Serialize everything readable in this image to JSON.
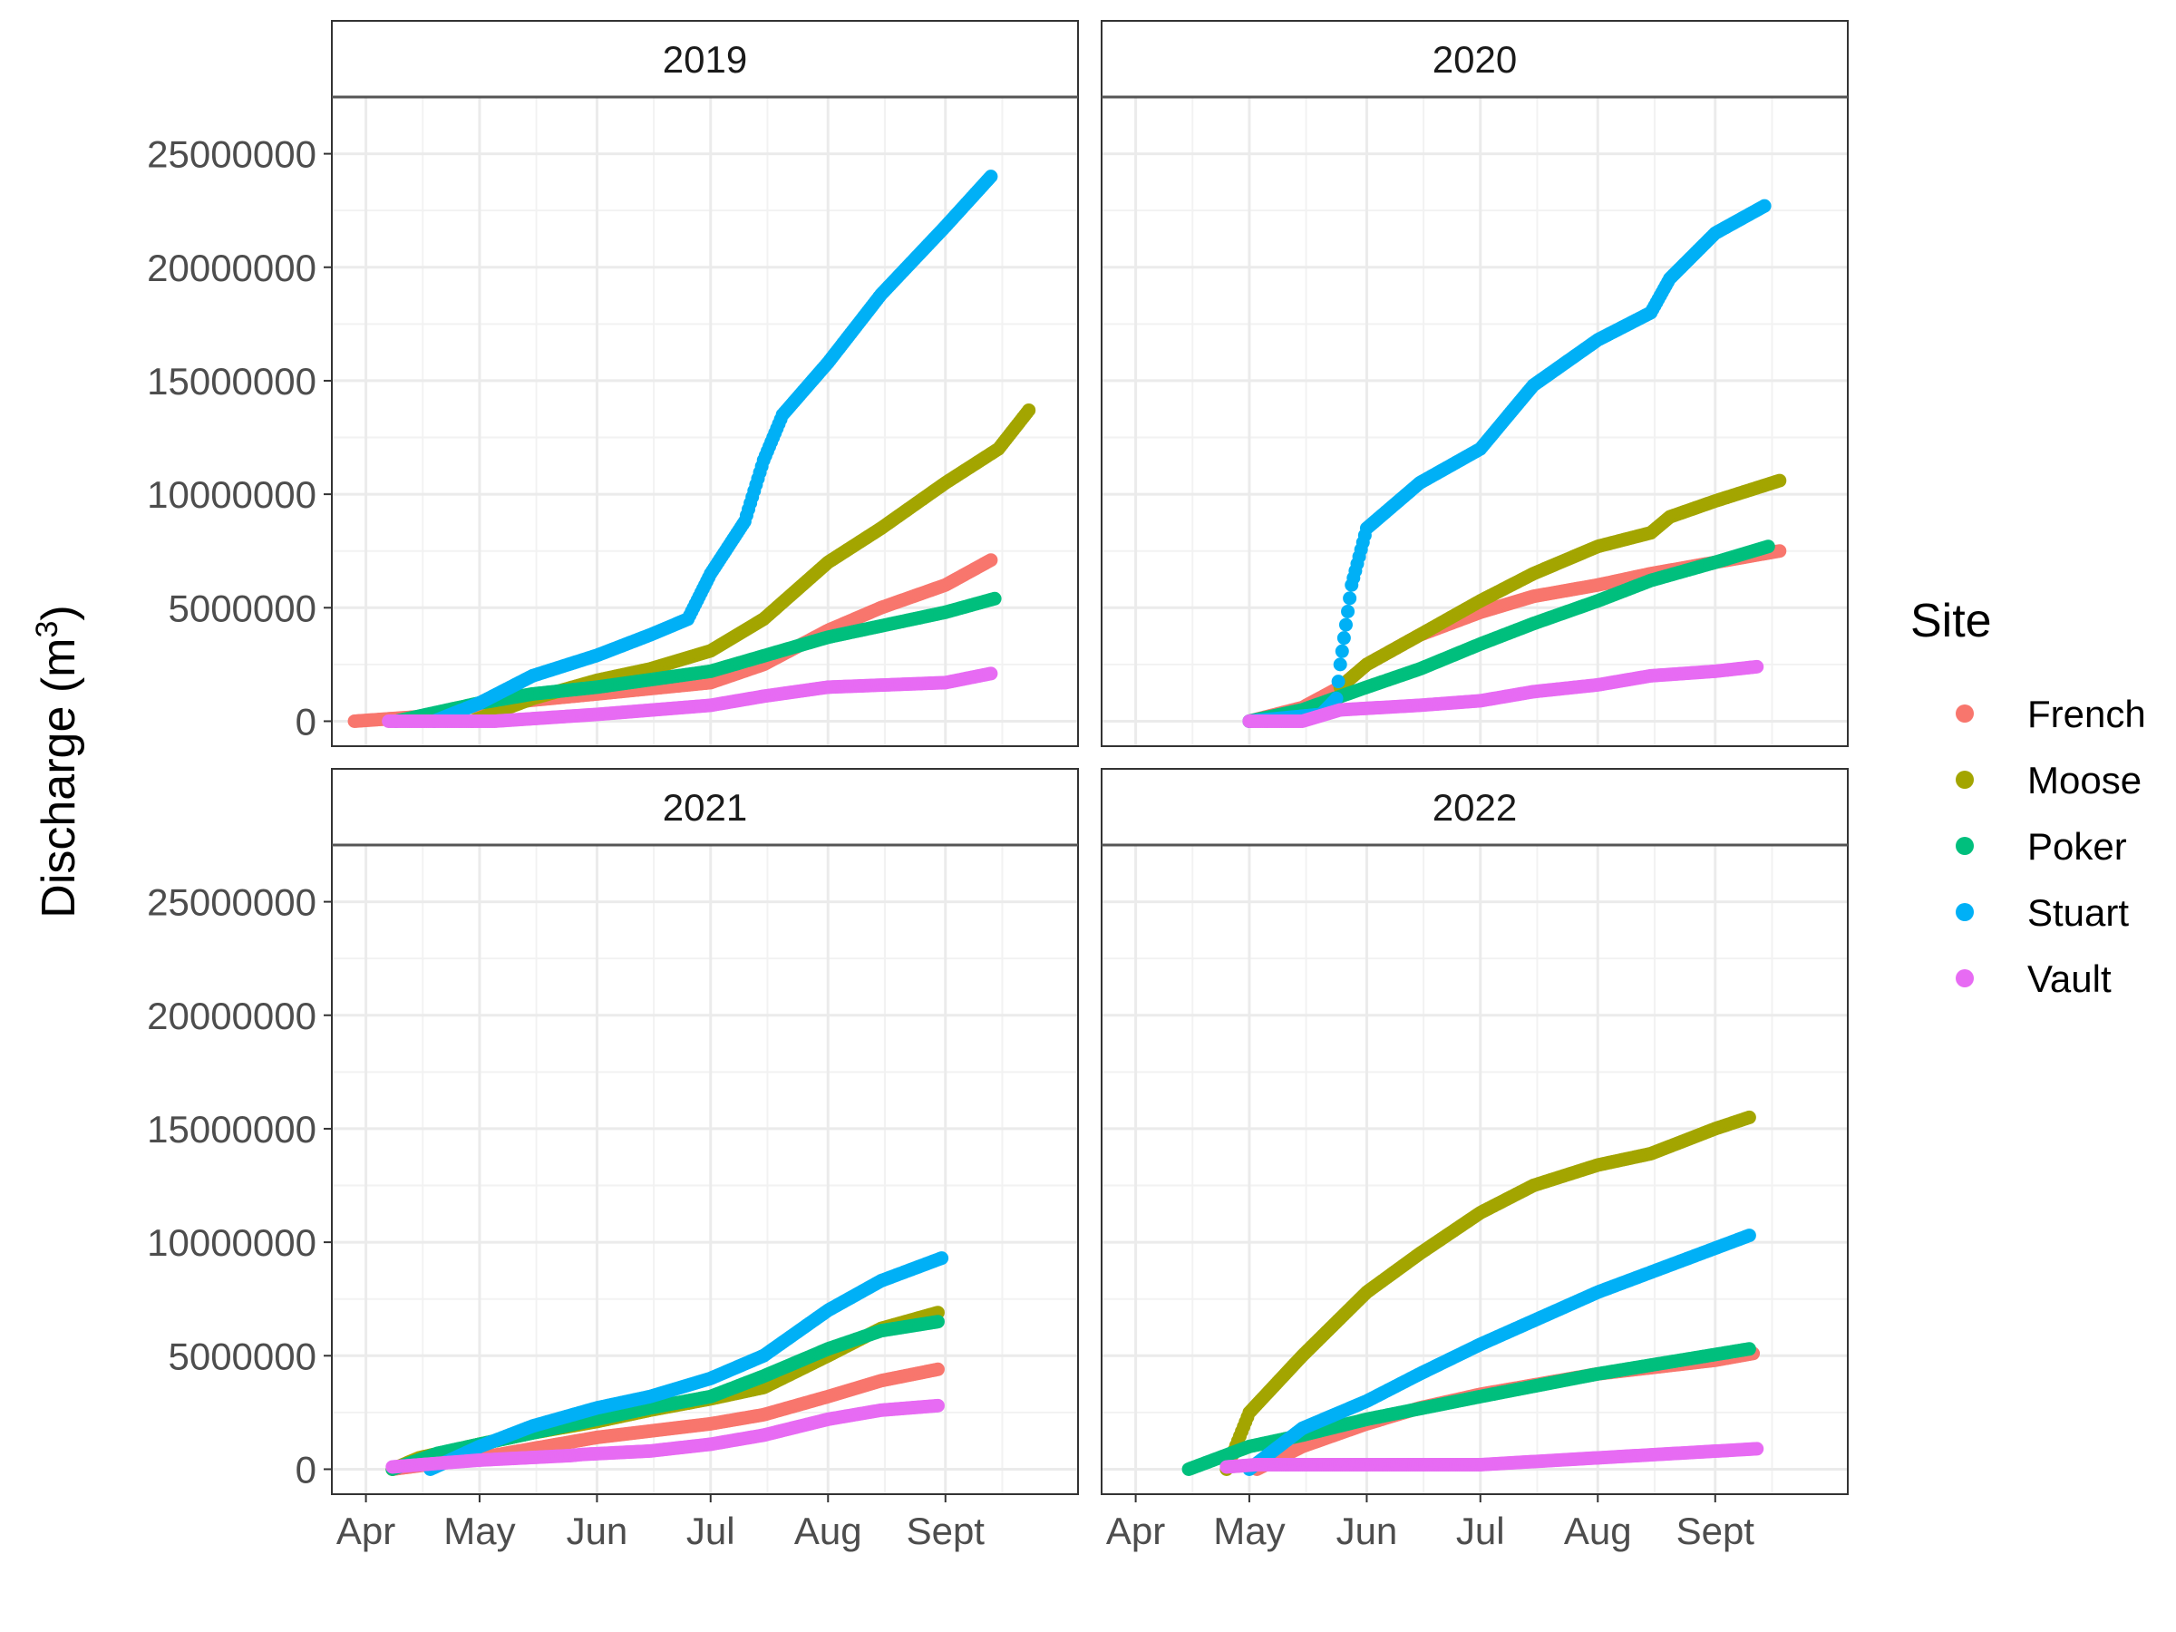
{
  "chart_data": {
    "type": "scatter",
    "ylabel": "Discharge (m",
    "ylabel_sup": "3",
    "ylabel_close": ")",
    "xlabel": "",
    "ylim": [
      -1100000,
      27500000
    ],
    "y_ticks": [
      0,
      5000000,
      10000000,
      15000000,
      20000000,
      25000000
    ],
    "y_tick_labels": [
      "0",
      "5000000",
      "10000000",
      "15000000",
      "20000000",
      "25000000"
    ],
    "x_ticks": [
      "04-01",
      "05-01",
      "06-01",
      "07-01",
      "08-01",
      "09-01"
    ],
    "x_tick_labels": [
      "Apr",
      "May",
      "Jun",
      "Jul",
      "Aug",
      "Sept"
    ],
    "x_minor": [
      "04-16",
      "05-16",
      "06-16",
      "07-16",
      "08-16",
      "09-16"
    ],
    "xlim": [
      "03-23",
      "10-06"
    ],
    "grid": true,
    "legend": {
      "title": "Site",
      "placement": "right"
    },
    "series_colors": {
      "French": "#F8766D",
      "Moose": "#A3A500",
      "Poker": "#00BF7D",
      "Stuart": "#00B0F6",
      "Vault": "#E76BF3"
    },
    "series_order": [
      "French",
      "Moose",
      "Poker",
      "Stuart",
      "Vault"
    ],
    "facets": [
      {
        "label": "2019",
        "series": [
          {
            "name": "French",
            "points": [
              [
                "03-29",
                0
              ],
              [
                "04-15",
                200000
              ],
              [
                "05-01",
                700000
              ],
              [
                "06-01",
                1200000
              ],
              [
                "07-01",
                1700000
              ],
              [
                "07-15",
                2500000
              ],
              [
                "08-01",
                4000000
              ],
              [
                "08-15",
                5000000
              ],
              [
                "09-01",
                6000000
              ],
              [
                "09-13",
                7100000
              ]
            ]
          },
          {
            "name": "Moose",
            "points": [
              [
                "04-29",
                0
              ],
              [
                "05-15",
                1000000
              ],
              [
                "06-01",
                1800000
              ],
              [
                "06-15",
                2300000
              ],
              [
                "07-01",
                3100000
              ],
              [
                "07-15",
                4500000
              ],
              [
                "08-01",
                7000000
              ],
              [
                "08-15",
                8500000
              ],
              [
                "09-01",
                10500000
              ],
              [
                "09-15",
                12000000
              ],
              [
                "09-23",
                13700000
              ]
            ]
          },
          {
            "name": "Poker",
            "points": [
              [
                "04-09",
                0
              ],
              [
                "05-01",
                800000
              ],
              [
                "05-15",
                1200000
              ],
              [
                "06-01",
                1500000
              ],
              [
                "07-01",
                2200000
              ],
              [
                "08-01",
                3700000
              ],
              [
                "09-01",
                4800000
              ],
              [
                "09-14",
                5400000
              ]
            ]
          },
          {
            "name": "Stuart",
            "points": [
              [
                "04-19",
                0
              ],
              [
                "05-01",
                800000
              ],
              [
                "05-15",
                2000000
              ],
              [
                "06-01",
                2900000
              ],
              [
                "06-15",
                3800000
              ],
              [
                "06-25",
                4500000
              ],
              [
                "07-01",
                6500000
              ],
              [
                "07-10",
                8800000
              ],
              [
                "07-15",
                11500000
              ],
              [
                "07-20",
                13500000
              ],
              [
                "08-01",
                15800000
              ],
              [
                "08-15",
                18800000
              ],
              [
                "09-01",
                21800000
              ],
              [
                "09-13",
                24000000
              ]
            ]
          },
          {
            "name": "Vault",
            "points": [
              [
                "04-07",
                0
              ],
              [
                "04-19",
                0
              ],
              [
                "05-05",
                0
              ],
              [
                "06-01",
                300000
              ],
              [
                "07-01",
                700000
              ],
              [
                "07-15",
                1100000
              ],
              [
                "08-01",
                1500000
              ],
              [
                "09-01",
                1700000
              ],
              [
                "09-13",
                2100000
              ]
            ]
          }
        ]
      },
      {
        "label": "2020",
        "series": [
          {
            "name": "French",
            "points": [
              [
                "05-01",
                0
              ],
              [
                "05-15",
                600000
              ],
              [
                "05-25",
                1500000
              ],
              [
                "06-01",
                2500000
              ],
              [
                "06-15",
                3800000
              ],
              [
                "07-01",
                4800000
              ],
              [
                "07-15",
                5500000
              ],
              [
                "08-01",
                6000000
              ],
              [
                "08-15",
                6500000
              ],
              [
                "09-01",
                7000000
              ],
              [
                "09-18",
                7500000
              ]
            ]
          },
          {
            "name": "Moose",
            "points": [
              [
                "05-25",
                1500000
              ],
              [
                "06-01",
                2500000
              ],
              [
                "06-15",
                3800000
              ],
              [
                "07-01",
                5300000
              ],
              [
                "07-15",
                6500000
              ],
              [
                "08-01",
                7700000
              ],
              [
                "08-15",
                8300000
              ],
              [
                "08-20",
                9000000
              ],
              [
                "09-01",
                9700000
              ],
              [
                "09-18",
                10600000
              ]
            ]
          },
          {
            "name": "Poker",
            "points": [
              [
                "05-01",
                0
              ],
              [
                "05-15",
                500000
              ],
              [
                "06-01",
                1500000
              ],
              [
                "06-15",
                2300000
              ],
              [
                "07-01",
                3400000
              ],
              [
                "07-15",
                4300000
              ],
              [
                "08-01",
                5300000
              ],
              [
                "08-15",
                6200000
              ],
              [
                "09-01",
                7000000
              ],
              [
                "09-15",
                7700000
              ]
            ]
          },
          {
            "name": "Stuart",
            "points": [
              [
                "05-01",
                0
              ],
              [
                "05-20",
                300000
              ],
              [
                "05-24",
                1000000
              ],
              [
                "05-25",
                2500000
              ],
              [
                "05-28",
                6000000
              ],
              [
                "06-01",
                8500000
              ],
              [
                "06-15",
                10500000
              ],
              [
                "07-01",
                12000000
              ],
              [
                "07-15",
                14800000
              ],
              [
                "08-01",
                16800000
              ],
              [
                "08-15",
                18000000
              ],
              [
                "08-20",
                19500000
              ],
              [
                "09-01",
                21500000
              ],
              [
                "09-14",
                22700000
              ]
            ]
          },
          {
            "name": "Vault",
            "points": [
              [
                "05-01",
                0
              ],
              [
                "05-15",
                0
              ],
              [
                "05-25",
                500000
              ],
              [
                "06-15",
                700000
              ],
              [
                "07-01",
                900000
              ],
              [
                "07-15",
                1300000
              ],
              [
                "08-01",
                1600000
              ],
              [
                "08-15",
                2000000
              ],
              [
                "09-01",
                2200000
              ],
              [
                "09-12",
                2400000
              ]
            ]
          }
        ]
      },
      {
        "label": "2021",
        "series": [
          {
            "name": "French",
            "points": [
              [
                "04-08",
                0
              ],
              [
                "05-01",
                500000
              ],
              [
                "06-01",
                1400000
              ],
              [
                "07-01",
                2000000
              ],
              [
                "07-15",
                2400000
              ],
              [
                "08-01",
                3200000
              ],
              [
                "08-15",
                3900000
              ],
              [
                "08-30",
                4400000
              ]
            ]
          },
          {
            "name": "Moose",
            "points": [
              [
                "04-08",
                0
              ],
              [
                "04-15",
                500000
              ],
              [
                "05-01",
                1100000
              ],
              [
                "05-15",
                1600000
              ],
              [
                "06-01",
                2100000
              ],
              [
                "06-15",
                2600000
              ],
              [
                "07-01",
                3100000
              ],
              [
                "07-15",
                3600000
              ],
              [
                "08-01",
                5000000
              ],
              [
                "08-15",
                6200000
              ],
              [
                "08-30",
                6900000
              ]
            ]
          },
          {
            "name": "Poker",
            "points": [
              [
                "04-08",
                0
              ],
              [
                "04-20",
                700000
              ],
              [
                "05-01",
                1100000
              ],
              [
                "05-15",
                1600000
              ],
              [
                "06-01",
                2200000
              ],
              [
                "06-15",
                2700000
              ],
              [
                "07-01",
                3200000
              ],
              [
                "07-15",
                4100000
              ],
              [
                "08-01",
                5300000
              ],
              [
                "08-15",
                6100000
              ],
              [
                "08-30",
                6500000
              ]
            ]
          },
          {
            "name": "Stuart",
            "points": [
              [
                "04-18",
                0
              ],
              [
                "05-01",
                1000000
              ],
              [
                "05-15",
                1900000
              ],
              [
                "06-01",
                2700000
              ],
              [
                "06-15",
                3200000
              ],
              [
                "07-01",
                4000000
              ],
              [
                "07-15",
                5000000
              ],
              [
                "08-01",
                7000000
              ],
              [
                "08-15",
                8300000
              ],
              [
                "08-31",
                9300000
              ]
            ]
          },
          {
            "name": "Vault",
            "points": [
              [
                "04-08",
                100000
              ],
              [
                "05-01",
                400000
              ],
              [
                "05-25",
                600000
              ],
              [
                "05-28",
                650000
              ],
              [
                "06-15",
                800000
              ],
              [
                "07-01",
                1100000
              ],
              [
                "07-15",
                1500000
              ],
              [
                "08-01",
                2200000
              ],
              [
                "08-15",
                2600000
              ],
              [
                "08-30",
                2800000
              ]
            ]
          }
        ]
      },
      {
        "label": "2022",
        "series": [
          {
            "name": "French",
            "points": [
              [
                "05-03",
                0
              ],
              [
                "05-15",
                1000000
              ],
              [
                "06-01",
                2000000
              ],
              [
                "06-15",
                2700000
              ],
              [
                "07-01",
                3300000
              ],
              [
                "08-01",
                4200000
              ],
              [
                "09-01",
                4800000
              ],
              [
                "09-11",
                5100000
              ]
            ]
          },
          {
            "name": "Moose",
            "points": [
              [
                "04-25",
                0
              ],
              [
                "05-01",
                2500000
              ],
              [
                "05-15",
                5000000
              ],
              [
                "06-01",
                7800000
              ],
              [
                "06-15",
                9500000
              ],
              [
                "07-01",
                11300000
              ],
              [
                "07-15",
                12500000
              ],
              [
                "08-01",
                13400000
              ],
              [
                "08-15",
                13900000
              ],
              [
                "09-01",
                15000000
              ],
              [
                "09-10",
                15500000
              ]
            ]
          },
          {
            "name": "Poker",
            "points": [
              [
                "04-15",
                0
              ],
              [
                "05-01",
                1000000
              ],
              [
                "05-15",
                1500000
              ],
              [
                "06-01",
                2200000
              ],
              [
                "07-01",
                3200000
              ],
              [
                "08-01",
                4200000
              ],
              [
                "09-10",
                5300000
              ]
            ]
          },
          {
            "name": "Stuart",
            "points": [
              [
                "05-01",
                0
              ],
              [
                "05-15",
                1800000
              ],
              [
                "06-01",
                3000000
              ],
              [
                "06-15",
                4200000
              ],
              [
                "07-01",
                5500000
              ],
              [
                "08-01",
                7800000
              ],
              [
                "09-10",
                10300000
              ]
            ]
          },
          {
            "name": "Vault",
            "points": [
              [
                "04-25",
                100000
              ],
              [
                "05-03",
                200000
              ],
              [
                "07-01",
                200000
              ],
              [
                "08-01",
                500000
              ],
              [
                "09-12",
                900000
              ]
            ]
          }
        ]
      }
    ]
  }
}
